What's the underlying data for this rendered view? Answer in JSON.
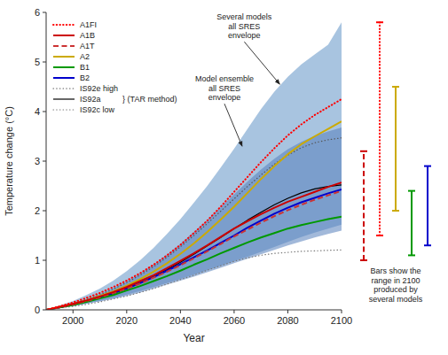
{
  "chart_data": {
    "type": "line",
    "xlabel": "Year",
    "ylabel": "Temperature change (°C)",
    "x": [
      1990,
      1995,
      2000,
      2005,
      2010,
      2015,
      2020,
      2025,
      2030,
      2035,
      2040,
      2045,
      2050,
      2055,
      2060,
      2065,
      2070,
      2075,
      2080,
      2085,
      2090,
      2095,
      2100
    ],
    "xlim": [
      1990,
      2100
    ],
    "xticks": [
      2000,
      2020,
      2040,
      2060,
      2080,
      2100
    ],
    "ylim": [
      0,
      6
    ],
    "yticks": [
      0,
      1,
      2,
      3,
      4,
      5,
      6
    ],
    "legend": "upper left",
    "series": [
      {
        "name": "A1FI",
        "color": "#ff0000",
        "line_style": "dotted",
        "values": [
          0,
          0.07,
          0.15,
          0.24,
          0.34,
          0.46,
          0.59,
          0.74,
          0.91,
          1.1,
          1.31,
          1.55,
          1.8,
          2.08,
          2.38,
          2.68,
          2.98,
          3.26,
          3.52,
          3.74,
          3.93,
          4.09,
          4.25
        ]
      },
      {
        "name": "A1B",
        "color": "#cc0000",
        "line_style": "solid",
        "values": [
          0,
          0.06,
          0.12,
          0.19,
          0.27,
          0.36,
          0.46,
          0.58,
          0.7,
          0.84,
          0.99,
          1.14,
          1.3,
          1.47,
          1.64,
          1.79,
          1.93,
          2.06,
          2.18,
          2.28,
          2.38,
          2.48,
          2.57
        ]
      },
      {
        "name": "A1T",
        "color": "#cc3333",
        "line_style": "dashed",
        "values": [
          0,
          0.05,
          0.11,
          0.18,
          0.25,
          0.34,
          0.43,
          0.53,
          0.65,
          0.77,
          0.9,
          1.04,
          1.18,
          1.33,
          1.48,
          1.62,
          1.76,
          1.89,
          2.01,
          2.12,
          2.22,
          2.31,
          2.4
        ]
      },
      {
        "name": "A2",
        "color": "#ccaa00",
        "line_style": "solid",
        "values": [
          0,
          0.06,
          0.12,
          0.19,
          0.28,
          0.37,
          0.49,
          0.62,
          0.77,
          0.94,
          1.13,
          1.34,
          1.57,
          1.82,
          2.08,
          2.36,
          2.64,
          2.9,
          3.14,
          3.34,
          3.5,
          3.65,
          3.8
        ]
      },
      {
        "name": "B1",
        "color": "#009900",
        "line_style": "solid",
        "values": [
          0,
          0.05,
          0.1,
          0.16,
          0.23,
          0.3,
          0.39,
          0.48,
          0.58,
          0.68,
          0.79,
          0.91,
          1.02,
          1.14,
          1.25,
          1.36,
          1.46,
          1.55,
          1.64,
          1.71,
          1.77,
          1.83,
          1.88
        ]
      },
      {
        "name": "B2",
        "color": "#0000cc",
        "line_style": "solid",
        "values": [
          0,
          0.05,
          0.11,
          0.18,
          0.25,
          0.34,
          0.43,
          0.54,
          0.66,
          0.79,
          0.92,
          1.06,
          1.2,
          1.35,
          1.5,
          1.66,
          1.8,
          1.94,
          2.06,
          2.17,
          2.26,
          2.35,
          2.43
        ]
      },
      {
        "name": "IS92e high",
        "color": "#555555",
        "line_style": "dotted",
        "values": [
          0,
          0.06,
          0.13,
          0.21,
          0.3,
          0.42,
          0.55,
          0.7,
          0.87,
          1.06,
          1.27,
          1.5,
          1.74,
          1.99,
          2.24,
          2.49,
          2.72,
          2.94,
          3.12,
          3.27,
          3.37,
          3.43,
          3.47
        ]
      },
      {
        "name": "IS92a",
        "color": "#000000",
        "line_style": "solid",
        "values": [
          0,
          0.05,
          0.1,
          0.17,
          0.24,
          0.33,
          0.43,
          0.55,
          0.67,
          0.81,
          0.96,
          1.12,
          1.29,
          1.46,
          1.64,
          1.81,
          1.97,
          2.12,
          2.25,
          2.36,
          2.44,
          2.49,
          2.52
        ]
      },
      {
        "name": "IS92c low",
        "color": "#777777",
        "line_style": "dotted",
        "values": [
          0,
          0.04,
          0.07,
          0.11,
          0.16,
          0.22,
          0.28,
          0.35,
          0.43,
          0.52,
          0.61,
          0.7,
          0.8,
          0.89,
          0.98,
          1.05,
          1.1,
          1.14,
          1.16,
          1.18,
          1.19,
          1.2,
          1.21
        ]
      }
    ],
    "bands": [
      {
        "color": "#a8c4e0",
        "low": [
          0,
          0.04,
          0.08,
          0.13,
          0.18,
          0.24,
          0.31,
          0.38,
          0.46,
          0.54,
          0.62,
          0.71,
          0.8,
          0.89,
          0.98,
          1.07,
          1.17,
          1.27,
          1.37,
          1.47,
          1.56,
          1.64,
          1.72
        ],
        "high": [
          0,
          0.09,
          0.18,
          0.3,
          0.43,
          0.59,
          0.78,
          1.0,
          1.25,
          1.53,
          1.83,
          2.16,
          2.5,
          2.87,
          3.25,
          3.65,
          4.05,
          4.4,
          4.7,
          4.95,
          5.15,
          5.35,
          5.8
        ]
      },
      {
        "color": "#5580bb",
        "low": [
          0,
          0.04,
          0.07,
          0.12,
          0.17,
          0.22,
          0.28,
          0.35,
          0.43,
          0.51,
          0.59,
          0.67,
          0.76,
          0.85,
          0.94,
          1.03,
          1.12,
          1.21,
          1.3,
          1.38,
          1.46,
          1.53,
          1.6
        ],
        "high": [
          0,
          0.07,
          0.14,
          0.22,
          0.32,
          0.44,
          0.57,
          0.73,
          0.91,
          1.11,
          1.33,
          1.57,
          1.81,
          2.07,
          2.33,
          2.59,
          2.83,
          3.05,
          3.24,
          3.39,
          3.51,
          3.6,
          3.68
        ]
      }
    ],
    "annotations": [
      {
        "text": "Several models\nall SRES\nenvelope",
        "x": 2077,
        "y": 4.55
      },
      {
        "text": "Model ensemble\nall SRES\nenvelope",
        "x": 2063,
        "y": 3.3
      }
    ],
    "legend_note": "} (TAR method)",
    "range_bars": [
      {
        "low": 1.0,
        "high": 3.2,
        "color": "#cc0000",
        "line_style": "dashed"
      },
      {
        "low": 1.5,
        "high": 5.8,
        "color": "#ff0000",
        "line_style": "dotted"
      },
      {
        "low": 2.0,
        "high": 4.5,
        "color": "#ccaa00",
        "line_style": "solid"
      },
      {
        "low": 1.1,
        "high": 2.4,
        "color": "#009900",
        "line_style": "solid"
      },
      {
        "low": 1.3,
        "high": 2.9,
        "color": "#0000cc",
        "line_style": "solid"
      }
    ],
    "range_bars_note": "Bars show the\nrange in 2100\nproduced by\nseveral models"
  }
}
